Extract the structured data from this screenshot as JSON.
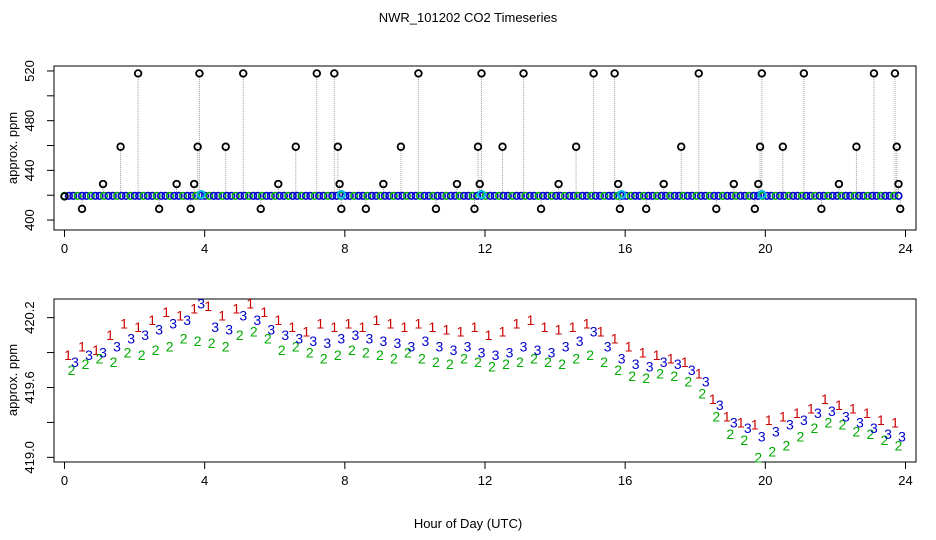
{
  "chart_data": {
    "title": "NWR_101202  CO2 Timeseries",
    "xlabel": "Hour of Day (UTC)",
    "x_ticks": [
      "0",
      "4",
      "8",
      "12",
      "16",
      "20",
      "24"
    ],
    "colors": {
      "trace": "#a0a0a0",
      "circle": "#000000",
      "baseline": "#0000cc",
      "highlight": "#00b8e0",
      "series1": "#cc0000",
      "series2": "#00aa00",
      "series3": "#0000cc"
    },
    "panels": [
      {
        "type": "scatter",
        "ylabel": "approx. ppm",
        "y_ticks": [
          "400",
          "440",
          "480",
          "520"
        ],
        "xlim": [
          -0.3,
          24.3
        ],
        "ylim": [
          392,
          524
        ],
        "baseline_y": 419.5,
        "baseline_x_start": 0.0,
        "baseline_x_end": 23.8,
        "cycle_markers": [
          3.9,
          7.9,
          11.9,
          15.9,
          19.9
        ],
        "points": [
          [
            0.0,
            419
          ],
          [
            0.5,
            409
          ],
          [
            1.1,
            429
          ],
          [
            1.6,
            459
          ],
          [
            2.1,
            518
          ],
          [
            2.7,
            409
          ],
          [
            3.2,
            429
          ],
          [
            3.6,
            409
          ],
          [
            3.7,
            429
          ],
          [
            3.8,
            459
          ],
          [
            3.85,
            518
          ],
          [
            4.6,
            459
          ],
          [
            5.1,
            518
          ],
          [
            5.6,
            409
          ],
          [
            6.1,
            429
          ],
          [
            6.6,
            459
          ],
          [
            7.2,
            518
          ],
          [
            7.7,
            518
          ],
          [
            7.8,
            459
          ],
          [
            7.85,
            429
          ],
          [
            7.9,
            409
          ],
          [
            8.6,
            409
          ],
          [
            9.1,
            429
          ],
          [
            9.6,
            459
          ],
          [
            10.1,
            518
          ],
          [
            10.6,
            409
          ],
          [
            11.2,
            429
          ],
          [
            11.7,
            409
          ],
          [
            11.8,
            459
          ],
          [
            11.85,
            429
          ],
          [
            11.9,
            518
          ],
          [
            12.5,
            459
          ],
          [
            13.1,
            518
          ],
          [
            13.6,
            409
          ],
          [
            14.1,
            429
          ],
          [
            14.6,
            459
          ],
          [
            15.1,
            518
          ],
          [
            15.7,
            518
          ],
          [
            15.8,
            429
          ],
          [
            15.85,
            409
          ],
          [
            16.6,
            409
          ],
          [
            17.1,
            429
          ],
          [
            17.6,
            459
          ],
          [
            18.1,
            518
          ],
          [
            18.6,
            409
          ],
          [
            19.1,
            429
          ],
          [
            19.7,
            409
          ],
          [
            19.8,
            429
          ],
          [
            19.85,
            459
          ],
          [
            19.9,
            518
          ],
          [
            20.5,
            459
          ],
          [
            21.1,
            518
          ],
          [
            21.6,
            409
          ],
          [
            22.1,
            429
          ],
          [
            22.6,
            459
          ],
          [
            23.1,
            518
          ],
          [
            23.7,
            518
          ],
          [
            23.75,
            459
          ],
          [
            23.8,
            429
          ],
          [
            23.85,
            409
          ]
        ]
      },
      {
        "type": "scatter",
        "ylabel": "approx. ppm",
        "y_ticks": [
          "419.0",
          "419.6",
          "420.2"
        ],
        "xlim": [
          -0.3,
          24.3
        ],
        "ylim": [
          418.96,
          420.36
        ],
        "series": [
          {
            "name": "1",
            "x": [
              0.1,
              0.5,
              0.9,
              1.3,
              1.7,
              2.1,
              2.5,
              2.9,
              3.3,
              3.7,
              4.1,
              4.5,
              4.9,
              5.3,
              5.7,
              6.1,
              6.5,
              6.9,
              7.3,
              7.7,
              8.1,
              8.5,
              8.9,
              9.3,
              9.7,
              10.1,
              10.5,
              10.9,
              11.3,
              11.7,
              12.1,
              12.5,
              12.9,
              13.3,
              13.7,
              14.1,
              14.5,
              14.9,
              15.3,
              15.7,
              16.1,
              16.5,
              16.9,
              17.3,
              17.7,
              18.1,
              18.5,
              18.9,
              19.3,
              19.7,
              20.1,
              20.5,
              20.9,
              21.3,
              21.7,
              22.1,
              22.5,
              22.9,
              23.3,
              23.7
            ],
            "y": [
              419.88,
              419.95,
              419.92,
              420.05,
              420.15,
              420.12,
              420.18,
              420.25,
              420.22,
              420.28,
              420.3,
              420.22,
              420.28,
              420.32,
              420.25,
              420.18,
              420.12,
              420.08,
              420.15,
              420.12,
              420.15,
              420.12,
              420.18,
              420.15,
              420.12,
              420.15,
              420.12,
              420.1,
              420.08,
              420.12,
              420.05,
              420.08,
              420.15,
              420.18,
              420.12,
              420.1,
              420.12,
              420.15,
              420.08,
              420.02,
              419.95,
              419.9,
              419.88,
              419.85,
              419.82,
              419.72,
              419.5,
              419.35,
              419.3,
              419.28,
              419.32,
              419.35,
              419.38,
              419.42,
              419.5,
              419.45,
              419.42,
              419.38,
              419.32,
              419.3
            ]
          },
          {
            "name": "2",
            "x": [
              0.2,
              0.6,
              1.0,
              1.4,
              1.8,
              2.2,
              2.6,
              3.0,
              3.4,
              3.8,
              4.2,
              4.6,
              5.0,
              5.4,
              5.8,
              6.2,
              6.6,
              7.0,
              7.4,
              7.8,
              8.2,
              8.6,
              9.0,
              9.4,
              9.8,
              10.2,
              10.6,
              11.0,
              11.4,
              11.8,
              12.2,
              12.6,
              13.0,
              13.4,
              13.8,
              14.2,
              14.6,
              15.0,
              15.4,
              15.8,
              16.2,
              16.6,
              17.0,
              17.4,
              17.8,
              18.2,
              18.6,
              19.0,
              19.4,
              19.8,
              20.2,
              20.6,
              21.0,
              21.4,
              21.8,
              22.2,
              22.6,
              23.0,
              23.4,
              23.8
            ],
            "y": [
              419.75,
              419.8,
              419.85,
              419.82,
              419.9,
              419.88,
              419.92,
              419.95,
              420.02,
              420.0,
              419.98,
              419.95,
              420.05,
              420.08,
              420.02,
              419.92,
              419.95,
              419.9,
              419.85,
              419.88,
              419.92,
              419.9,
              419.88,
              419.85,
              419.9,
              419.85,
              419.82,
              419.8,
              419.85,
              419.82,
              419.78,
              419.8,
              419.82,
              419.85,
              419.82,
              419.8,
              419.85,
              419.88,
              419.82,
              419.75,
              419.7,
              419.68,
              419.72,
              419.7,
              419.65,
              419.55,
              419.35,
              419.2,
              419.15,
              419.0,
              419.05,
              419.1,
              419.18,
              419.25,
              419.3,
              419.28,
              419.22,
              419.2,
              419.15,
              419.1
            ]
          },
          {
            "name": "3",
            "x": [
              0.3,
              0.7,
              1.1,
              1.5,
              1.9,
              2.3,
              2.7,
              3.1,
              3.5,
              3.9,
              4.3,
              4.7,
              5.1,
              5.5,
              5.9,
              6.3,
              6.7,
              7.1,
              7.5,
              7.9,
              8.3,
              8.7,
              9.1,
              9.5,
              9.9,
              10.3,
              10.7,
              11.1,
              11.5,
              11.9,
              12.3,
              12.7,
              13.1,
              13.5,
              13.9,
              14.3,
              14.7,
              15.1,
              15.5,
              15.9,
              16.3,
              16.7,
              17.1,
              17.5,
              17.9,
              18.3,
              18.7,
              19.1,
              19.5,
              19.9,
              20.3,
              20.7,
              21.1,
              21.5,
              21.9,
              22.3,
              22.7,
              23.1,
              23.5,
              23.9
            ],
            "y": [
              419.82,
              419.88,
              419.9,
              419.95,
              420.02,
              420.05,
              420.1,
              420.15,
              420.18,
              420.32,
              420.12,
              420.1,
              420.22,
              420.18,
              420.1,
              420.05,
              420.02,
              420.0,
              419.98,
              420.02,
              420.05,
              420.02,
              420.0,
              419.98,
              419.95,
              420.0,
              419.95,
              419.92,
              419.95,
              419.9,
              419.88,
              419.9,
              419.95,
              419.92,
              419.9,
              419.95,
              420.0,
              420.08,
              419.95,
              419.85,
              419.8,
              419.78,
              419.82,
              419.8,
              419.75,
              419.65,
              419.45,
              419.3,
              419.25,
              419.18,
              419.22,
              419.28,
              419.32,
              419.38,
              419.4,
              419.35,
              419.3,
              419.25,
              419.2,
              419.18
            ]
          }
        ]
      }
    ]
  }
}
